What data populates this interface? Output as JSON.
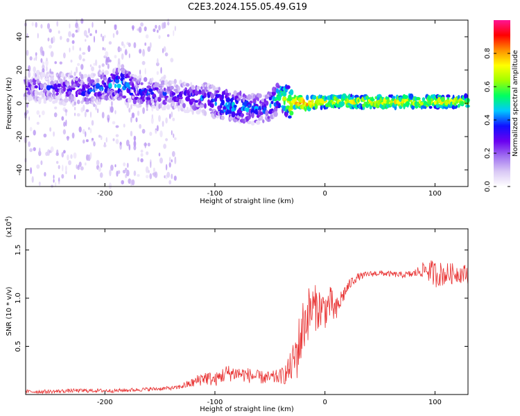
{
  "title": "C2E3.2024.155.05.49.G19",
  "colors": {
    "snr_line": "#e83030",
    "colormap": [
      "#ffffff",
      "#d9c8f5",
      "#a070f0",
      "#6a00f0",
      "#1010ff",
      "#00c8ff",
      "#00ff60",
      "#a0ff00",
      "#ffff00",
      "#ff9000",
      "#ff0000",
      "#ff1493"
    ]
  },
  "chart_data": [
    {
      "type": "heatmap",
      "xlabel": "Height of straight line (km)",
      "ylabel": "Frequency (Hz)",
      "xlim": [
        -272,
        130
      ],
      "ylim": [
        -50,
        50
      ],
      "xticks": [
        -200,
        -100,
        0,
        100
      ],
      "yticks": [
        -40,
        -20,
        0,
        20,
        40
      ],
      "colorbar": {
        "label": "Normalized spectral amplitude",
        "range": [
          0,
          1
        ],
        "ticks": [
          "0.0",
          "0.2",
          "0.4",
          "0.6",
          "0.8"
        ],
        "tick_values": [
          0,
          0.2,
          0.4,
          0.6,
          0.8
        ]
      },
      "ridge": {
        "x": [
          -265,
          -240,
          -220,
          -200,
          -185,
          -170,
          -150,
          -130,
          -110,
          -90,
          -70,
          -55,
          -45,
          -40,
          -32,
          -25,
          -15,
          0,
          50,
          100,
          130
        ],
        "y": [
          10,
          9,
          8,
          10,
          12,
          7,
          6,
          4,
          3,
          -1,
          -3,
          -4,
          2,
          5,
          0,
          1,
          0,
          1,
          1,
          1,
          1
        ],
        "amplitude": [
          0.25,
          0.3,
          0.35,
          0.35,
          0.45,
          0.35,
          0.3,
          0.3,
          0.35,
          0.45,
          0.4,
          0.35,
          0.45,
          0.55,
          0.7,
          0.85,
          0.8,
          0.7,
          0.7,
          0.7,
          0.7
        ]
      }
    },
    {
      "type": "line",
      "xlabel": "Height of straight line (km)",
      "ylabel": "SNR (10 * v/v)",
      "y_multiplier": "(x10",
      "y_multiplier_exp": "4",
      "y_multiplier_close": ")",
      "xlim": [
        -272,
        130
      ],
      "ylim": [
        0,
        1.72
      ],
      "xticks": [
        -200,
        -100,
        0,
        100
      ],
      "yticks": [
        0.5,
        1.0,
        1.5
      ],
      "ytick_labels": [
        "0.5",
        "1.0",
        "1.5"
      ],
      "series": [
        {
          "x": [
            -272,
            -250,
            -230,
            -210,
            -190,
            -170,
            -150,
            -135,
            -120,
            -110,
            -100,
            -90,
            -80,
            -70,
            -60,
            -50,
            -40,
            -35,
            -30,
            -25,
            -22,
            -20,
            -15,
            -10,
            -5,
            0,
            5,
            10,
            15,
            20,
            25,
            30,
            40,
            50,
            60,
            70,
            80,
            90,
            95,
            100,
            110,
            120,
            130
          ],
          "y": [
            0.03,
            0.03,
            0.04,
            0.04,
            0.04,
            0.05,
            0.06,
            0.07,
            0.12,
            0.18,
            0.15,
            0.22,
            0.22,
            0.2,
            0.18,
            0.17,
            0.19,
            0.22,
            0.3,
            0.45,
            0.6,
            0.7,
            0.85,
            0.9,
            0.9,
            0.88,
            0.95,
            0.85,
            1.0,
            1.1,
            1.18,
            1.22,
            1.25,
            1.26,
            1.25,
            1.24,
            1.25,
            1.3,
            1.28,
            1.25,
            1.25,
            1.26,
            1.25
          ],
          "noise": [
            0.02,
            0.02,
            0.02,
            0.02,
            0.02,
            0.02,
            0.02,
            0.02,
            0.05,
            0.08,
            0.07,
            0.09,
            0.08,
            0.08,
            0.07,
            0.07,
            0.08,
            0.12,
            0.18,
            0.3,
            0.32,
            0.3,
            0.28,
            0.25,
            0.22,
            0.2,
            0.18,
            0.15,
            0.1,
            0.07,
            0.05,
            0.04,
            0.03,
            0.03,
            0.03,
            0.03,
            0.04,
            0.08,
            0.12,
            0.14,
            0.12,
            0.1,
            0.1
          ]
        }
      ]
    }
  ]
}
